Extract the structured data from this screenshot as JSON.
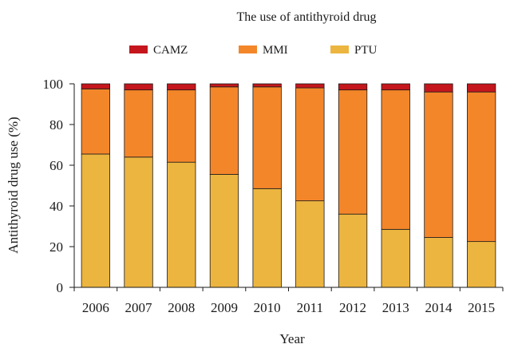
{
  "chart_data": {
    "type": "bar",
    "stacked": true,
    "title": "The use of antithyroid drug",
    "xlabel": "Year",
    "ylabel": "Antithyroid drug use (%)",
    "ylim": [
      0,
      100
    ],
    "yticks": [
      0,
      20,
      40,
      60,
      80,
      100
    ],
    "categories": [
      "2006",
      "2007",
      "2008",
      "2009",
      "2010",
      "2011",
      "2012",
      "2013",
      "2014",
      "2015"
    ],
    "legend_position": "top",
    "series": [
      {
        "name": "PTU",
        "color": "#ecb540",
        "values": [
          65.5,
          64,
          61.5,
          55.5,
          48.5,
          42.5,
          36,
          28.5,
          24.5,
          22.5
        ]
      },
      {
        "name": "MMI",
        "color": "#f4862a",
        "values": [
          32,
          33,
          35.5,
          43,
          50,
          55.5,
          61,
          68.5,
          71.5,
          73.5
        ]
      },
      {
        "name": "CAMZ",
        "color": "#c4161c",
        "values": [
          2.5,
          3,
          3,
          1.5,
          1.5,
          2,
          3,
          3,
          4,
          4
        ]
      }
    ],
    "legend_order": [
      "CAMZ",
      "MMI",
      "PTU"
    ]
  }
}
